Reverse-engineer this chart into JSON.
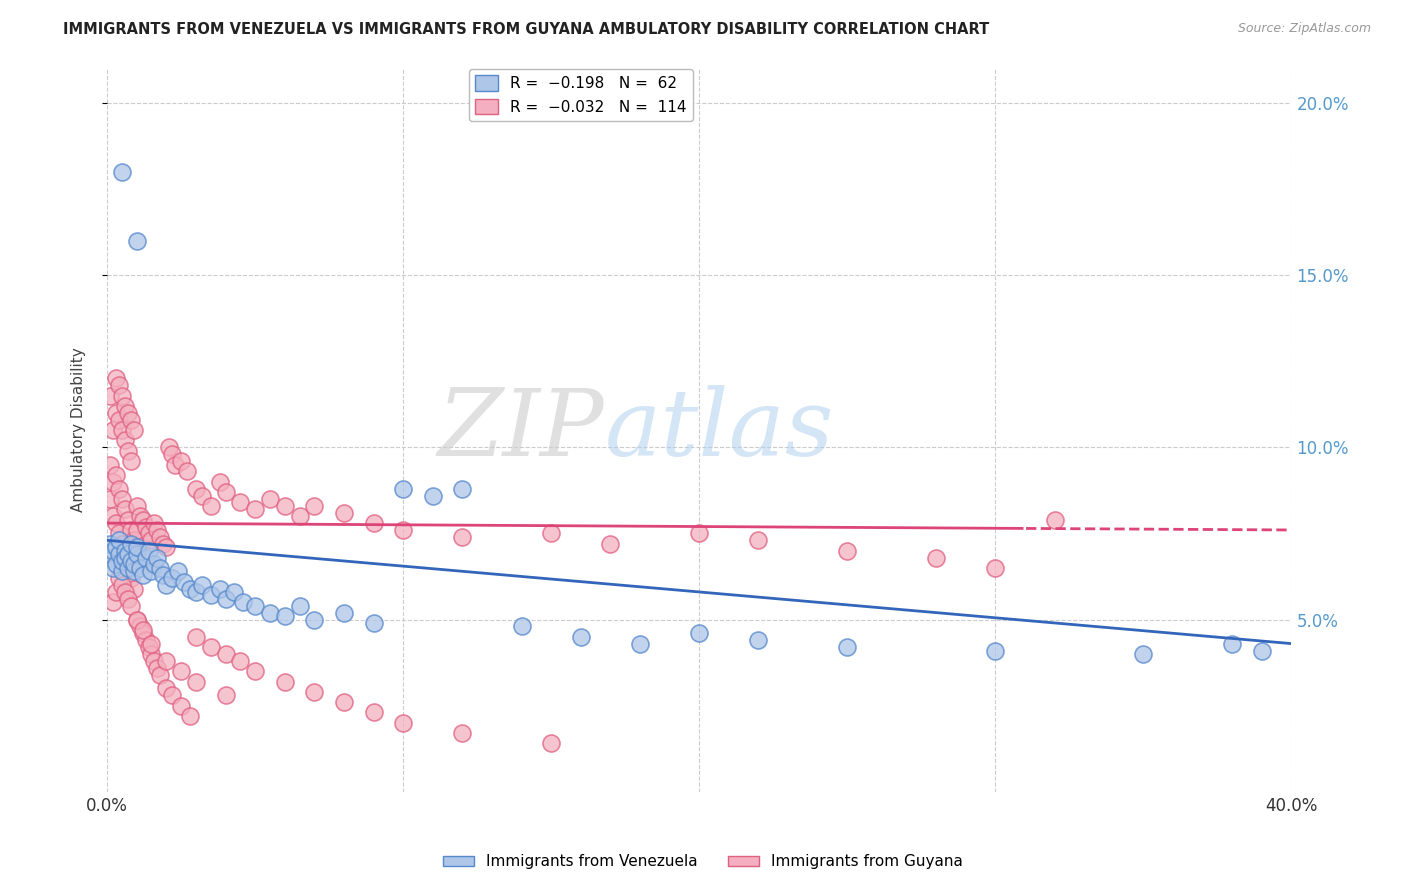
{
  "title": "IMMIGRANTS FROM VENEZUELA VS IMMIGRANTS FROM GUYANA AMBULATORY DISABILITY CORRELATION CHART",
  "source": "Source: ZipAtlas.com",
  "ylabel": "Ambulatory Disability",
  "xlim": [
    0.0,
    0.4
  ],
  "ylim": [
    0.0,
    0.21
  ],
  "yticks": [
    0.05,
    0.1,
    0.15,
    0.2
  ],
  "ytick_labels": [
    "5.0%",
    "10.0%",
    "15.0%",
    "20.0%"
  ],
  "xticks": [
    0.0,
    0.1,
    0.2,
    0.3,
    0.4
  ],
  "xtick_labels": [
    "0.0%",
    "",
    "",
    "",
    "40.0%"
  ],
  "watermark_zip": "ZIP",
  "watermark_atlas": "atlas",
  "venezuela_color": "#aec6e8",
  "venezuela_edge": "#5588cc",
  "guyana_color": "#f4b0c0",
  "guyana_edge": "#e06080",
  "venezuela_trend_slope": -0.075,
  "venezuela_trend_intercept": 0.073,
  "guyana_trend_slope": -0.005,
  "guyana_trend_intercept": 0.078,
  "venezuela_x": [
    0.001,
    0.001,
    0.002,
    0.002,
    0.003,
    0.003,
    0.004,
    0.004,
    0.005,
    0.005,
    0.006,
    0.006,
    0.007,
    0.007,
    0.008,
    0.008,
    0.009,
    0.009,
    0.01,
    0.01,
    0.011,
    0.012,
    0.013,
    0.014,
    0.015,
    0.016,
    0.017,
    0.018,
    0.019,
    0.02,
    0.022,
    0.024,
    0.026,
    0.028,
    0.03,
    0.032,
    0.035,
    0.038,
    0.04,
    0.043,
    0.046,
    0.05,
    0.055,
    0.06,
    0.065,
    0.07,
    0.08,
    0.09,
    0.1,
    0.11,
    0.12,
    0.14,
    0.16,
    0.18,
    0.2,
    0.22,
    0.25,
    0.3,
    0.35,
    0.38,
    0.39,
    0.005,
    0.01
  ],
  "venezuela_y": [
    0.068,
    0.072,
    0.065,
    0.07,
    0.066,
    0.071,
    0.069,
    0.073,
    0.064,
    0.067,
    0.07,
    0.068,
    0.065,
    0.069,
    0.067,
    0.072,
    0.064,
    0.066,
    0.069,
    0.071,
    0.065,
    0.063,
    0.068,
    0.07,
    0.064,
    0.066,
    0.068,
    0.065,
    0.063,
    0.06,
    0.062,
    0.064,
    0.061,
    0.059,
    0.058,
    0.06,
    0.057,
    0.059,
    0.056,
    0.058,
    0.055,
    0.054,
    0.052,
    0.051,
    0.054,
    0.05,
    0.052,
    0.049,
    0.088,
    0.086,
    0.088,
    0.048,
    0.045,
    0.043,
    0.046,
    0.044,
    0.042,
    0.041,
    0.04,
    0.043,
    0.041,
    0.18,
    0.16
  ],
  "guyana_x": [
    0.001,
    0.001,
    0.001,
    0.002,
    0.002,
    0.002,
    0.003,
    0.003,
    0.003,
    0.004,
    0.004,
    0.004,
    0.005,
    0.005,
    0.005,
    0.006,
    0.006,
    0.006,
    0.007,
    0.007,
    0.007,
    0.008,
    0.008,
    0.008,
    0.009,
    0.009,
    0.01,
    0.01,
    0.01,
    0.011,
    0.012,
    0.013,
    0.014,
    0.015,
    0.016,
    0.017,
    0.018,
    0.019,
    0.02,
    0.021,
    0.022,
    0.023,
    0.025,
    0.027,
    0.03,
    0.032,
    0.035,
    0.038,
    0.04,
    0.045,
    0.05,
    0.055,
    0.06,
    0.065,
    0.07,
    0.08,
    0.09,
    0.1,
    0.12,
    0.15,
    0.17,
    0.2,
    0.22,
    0.25,
    0.28,
    0.3,
    0.003,
    0.004,
    0.005,
    0.006,
    0.007,
    0.008,
    0.009,
    0.01,
    0.011,
    0.012,
    0.013,
    0.014,
    0.015,
    0.016,
    0.017,
    0.018,
    0.02,
    0.022,
    0.025,
    0.028,
    0.03,
    0.035,
    0.04,
    0.045,
    0.05,
    0.06,
    0.07,
    0.08,
    0.09,
    0.1,
    0.12,
    0.15,
    0.002,
    0.003,
    0.004,
    0.005,
    0.006,
    0.007,
    0.008,
    0.01,
    0.012,
    0.015,
    0.02,
    0.025,
    0.03,
    0.04,
    0.32
  ],
  "guyana_y": [
    0.095,
    0.085,
    0.115,
    0.09,
    0.08,
    0.105,
    0.092,
    0.078,
    0.11,
    0.088,
    0.075,
    0.108,
    0.085,
    0.072,
    0.105,
    0.082,
    0.068,
    0.102,
    0.079,
    0.065,
    0.099,
    0.076,
    0.062,
    0.096,
    0.073,
    0.059,
    0.076,
    0.07,
    0.083,
    0.08,
    0.079,
    0.077,
    0.075,
    0.073,
    0.078,
    0.076,
    0.074,
    0.072,
    0.071,
    0.1,
    0.098,
    0.095,
    0.096,
    0.093,
    0.088,
    0.086,
    0.083,
    0.09,
    0.087,
    0.084,
    0.082,
    0.085,
    0.083,
    0.08,
    0.083,
    0.081,
    0.078,
    0.076,
    0.074,
    0.075,
    0.072,
    0.075,
    0.073,
    0.07,
    0.068,
    0.065,
    0.12,
    0.118,
    0.115,
    0.112,
    0.11,
    0.108,
    0.105,
    0.05,
    0.048,
    0.046,
    0.044,
    0.042,
    0.04,
    0.038,
    0.036,
    0.034,
    0.03,
    0.028,
    0.025,
    0.022,
    0.045,
    0.042,
    0.04,
    0.038,
    0.035,
    0.032,
    0.029,
    0.026,
    0.023,
    0.02,
    0.017,
    0.014,
    0.055,
    0.058,
    0.062,
    0.06,
    0.058,
    0.056,
    0.054,
    0.05,
    0.047,
    0.043,
    0.038,
    0.035,
    0.032,
    0.028,
    0.079
  ]
}
